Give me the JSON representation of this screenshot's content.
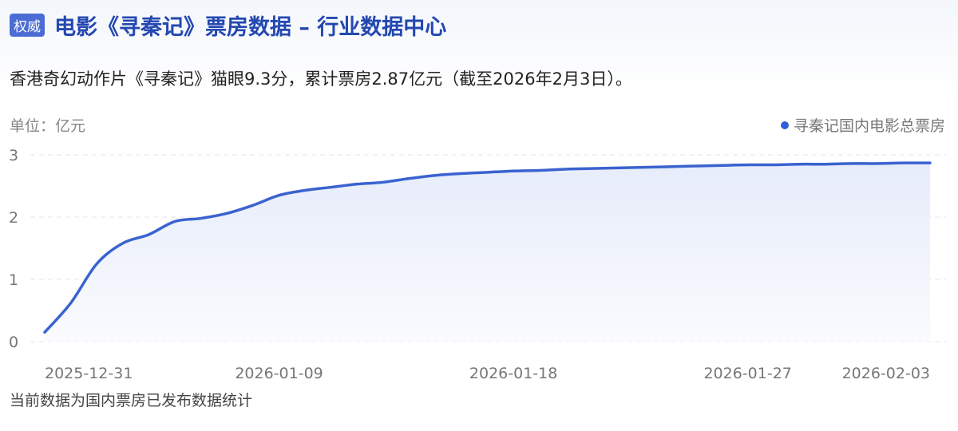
{
  "header": {
    "badge": "权威",
    "title": "电影《寻秦记》票房数据 – 行业数据中心"
  },
  "subtitle": "香港奇幻动作片《寻秦记》猫眼9.3分，累计票房2.87亿元（截至2026年2月3日）。",
  "footer": "当前数据为国内票房已发布数据统计",
  "colors": {
    "line": "#3a63d0",
    "accent": "#2448b0",
    "badge_bg": "#4a6cd4"
  },
  "chart_data": {
    "type": "area",
    "unit_label": "单位：亿元",
    "legend": {
      "label": "寻秦记国内电影总票房",
      "position": "top-right"
    },
    "ylim": [
      0,
      3
    ],
    "yticks": [
      "0",
      "1",
      "2",
      "3"
    ],
    "xticks": [
      "2025-12-31",
      "2026-01-09",
      "2026-01-18",
      "2026-01-27",
      "2026-02-03"
    ],
    "grid": true,
    "series": [
      {
        "name": "寻秦记国内电影总票房",
        "x_start": "2025-12-31",
        "x_end": "2026-02-03",
        "values": [
          0.15,
          0.62,
          1.25,
          1.58,
          1.72,
          1.93,
          1.98,
          2.06,
          2.19,
          2.35,
          2.43,
          2.48,
          2.53,
          2.56,
          2.62,
          2.67,
          2.7,
          2.72,
          2.74,
          2.75,
          2.77,
          2.78,
          2.79,
          2.8,
          2.81,
          2.82,
          2.83,
          2.84,
          2.84,
          2.85,
          2.85,
          2.86,
          2.86,
          2.87,
          2.87
        ]
      }
    ]
  }
}
